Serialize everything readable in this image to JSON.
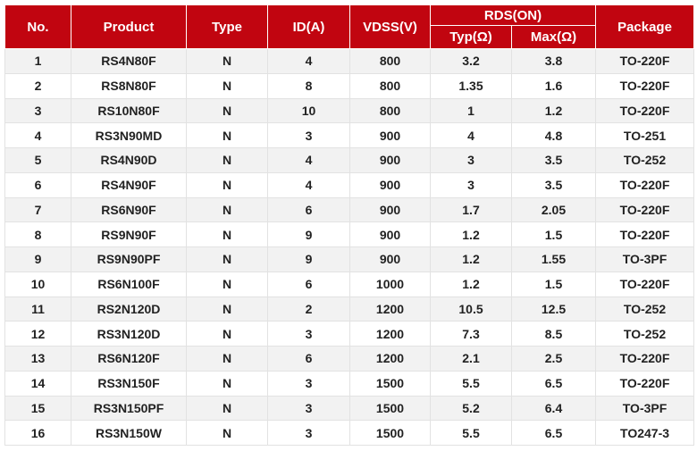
{
  "header": {
    "no": "No.",
    "product": "Product",
    "type": "Type",
    "id": "ID(A)",
    "vdss": "VDSS(V)",
    "rds": "RDS(ON)",
    "typ": "Typ(Ω)",
    "max": "Max(Ω)",
    "package": "Package"
  },
  "colors": {
    "header_bg": "#c10510",
    "header_text": "#ffffff",
    "stripe": "#f2f2f2"
  },
  "rows": [
    {
      "no": "1",
      "product": "RS4N80F",
      "type": "N",
      "id": "4",
      "vdss": "800",
      "typ": "3.2",
      "max": "3.8",
      "package": "TO-220F"
    },
    {
      "no": "2",
      "product": "RS8N80F",
      "type": "N",
      "id": "8",
      "vdss": "800",
      "typ": "1.35",
      "max": "1.6",
      "package": "TO-220F"
    },
    {
      "no": "3",
      "product": "RS10N80F",
      "type": "N",
      "id": "10",
      "vdss": "800",
      "typ": "1",
      "max": "1.2",
      "package": "TO-220F"
    },
    {
      "no": "4",
      "product": "RS3N90MD",
      "type": "N",
      "id": "3",
      "vdss": "900",
      "typ": "4",
      "max": "4.8",
      "package": "TO-251"
    },
    {
      "no": "5",
      "product": "RS4N90D",
      "type": "N",
      "id": "4",
      "vdss": "900",
      "typ": "3",
      "max": "3.5",
      "package": "TO-252"
    },
    {
      "no": "6",
      "product": "RS4N90F",
      "type": "N",
      "id": "4",
      "vdss": "900",
      "typ": "3",
      "max": "3.5",
      "package": "TO-220F"
    },
    {
      "no": "7",
      "product": "RS6N90F",
      "type": "N",
      "id": "6",
      "vdss": "900",
      "typ": "1.7",
      "max": "2.05",
      "package": "TO-220F"
    },
    {
      "no": "8",
      "product": "RS9N90F",
      "type": "N",
      "id": "9",
      "vdss": "900",
      "typ": "1.2",
      "max": "1.5",
      "package": "TO-220F"
    },
    {
      "no": "9",
      "product": "RS9N90PF",
      "type": "N",
      "id": "9",
      "vdss": "900",
      "typ": "1.2",
      "max": "1.55",
      "package": "TO-3PF"
    },
    {
      "no": "10",
      "product": "RS6N100F",
      "type": "N",
      "id": "6",
      "vdss": "1000",
      "typ": "1.2",
      "max": "1.5",
      "package": "TO-220F"
    },
    {
      "no": "11",
      "product": "RS2N120D",
      "type": "N",
      "id": "2",
      "vdss": "1200",
      "typ": "10.5",
      "max": "12.5",
      "package": "TO-252"
    },
    {
      "no": "12",
      "product": "RS3N120D",
      "type": "N",
      "id": "3",
      "vdss": "1200",
      "typ": "7.3",
      "max": "8.5",
      "package": "TO-252"
    },
    {
      "no": "13",
      "product": "RS6N120F",
      "type": "N",
      "id": "6",
      "vdss": "1200",
      "typ": "2.1",
      "max": "2.5",
      "package": "TO-220F"
    },
    {
      "no": "14",
      "product": "RS3N150F",
      "type": "N",
      "id": "3",
      "vdss": "1500",
      "typ": "5.5",
      "max": "6.5",
      "package": "TO-220F"
    },
    {
      "no": "15",
      "product": "RS3N150PF",
      "type": "N",
      "id": "3",
      "vdss": "1500",
      "typ": "5.2",
      "max": "6.4",
      "package": "TO-3PF"
    },
    {
      "no": "16",
      "product": "RS3N150W",
      "type": "N",
      "id": "3",
      "vdss": "1500",
      "typ": "5.5",
      "max": "6.5",
      "package": "TO247-3"
    }
  ]
}
